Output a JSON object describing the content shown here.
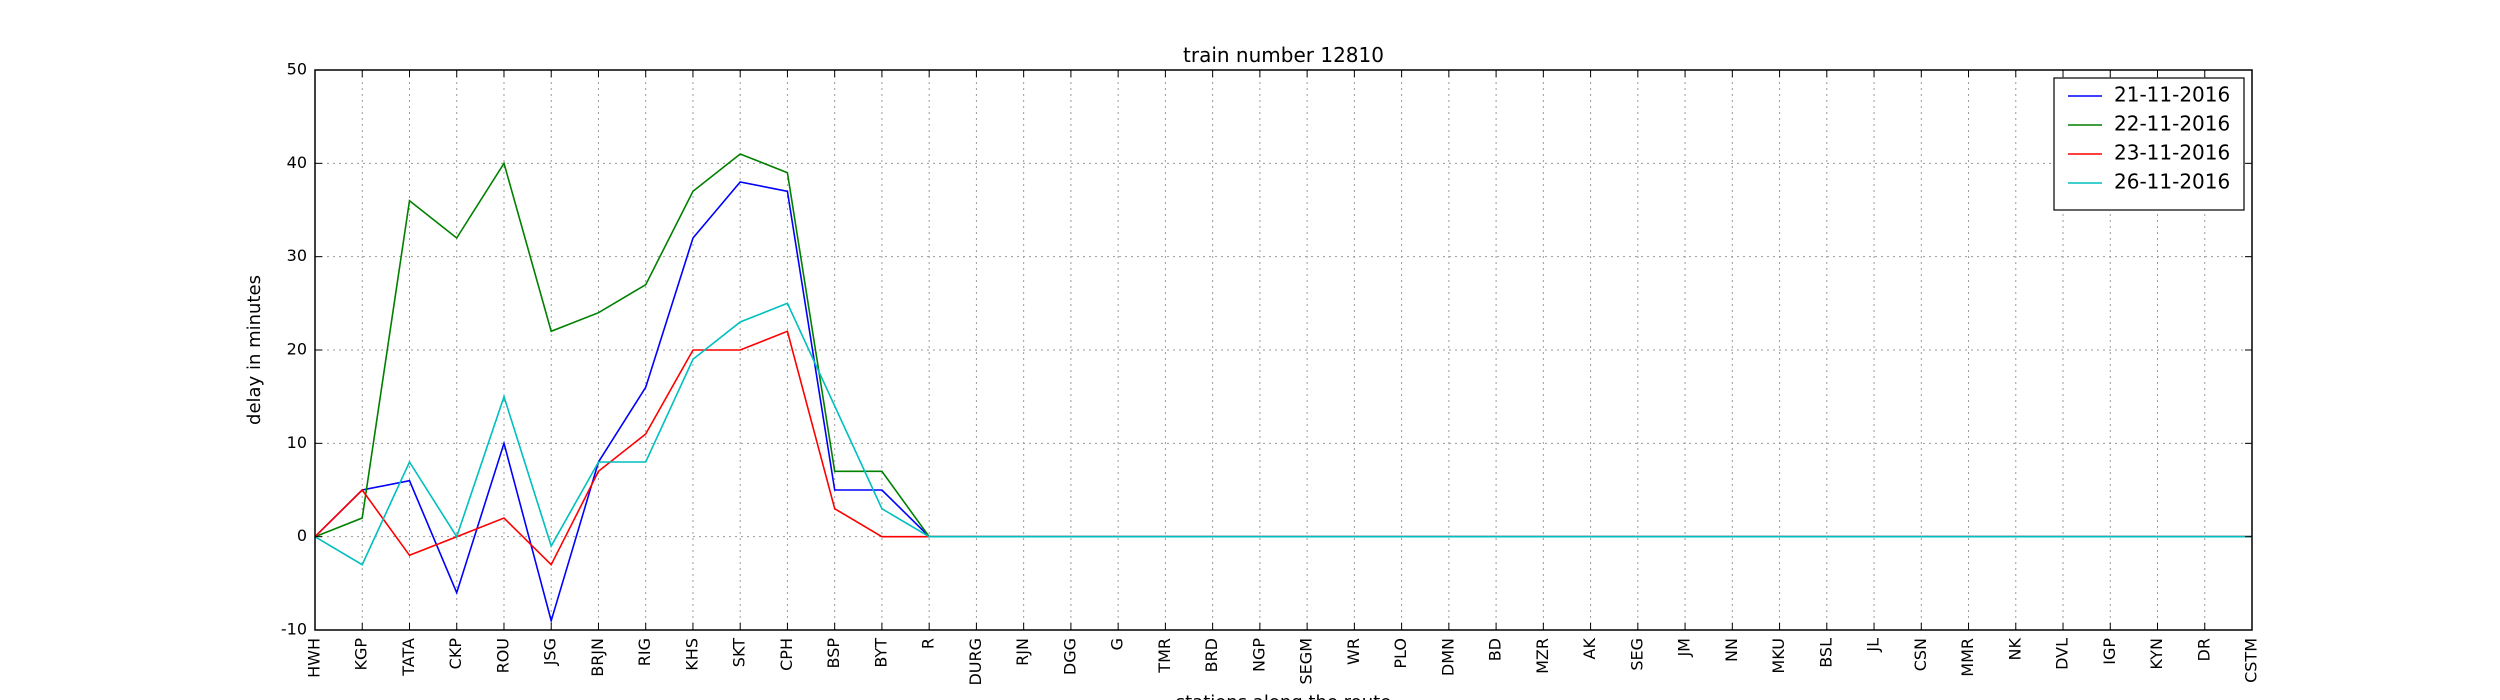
{
  "chart_data": {
    "type": "line",
    "title": "train number 12810",
    "xlabel": "stations along the route",
    "ylabel": "delay in minutes",
    "ylim": [
      -10,
      50
    ],
    "yticks": [
      -10,
      0,
      10,
      20,
      30,
      40,
      50
    ],
    "grid": true,
    "legend_position": "top-right",
    "categories": [
      "HWH",
      "KGP",
      "TATA",
      "CKP",
      "ROU",
      "JSG",
      "BRJN",
      "RIG",
      "KHS",
      "SKT",
      "CPH",
      "BSP",
      "BYT",
      "R",
      "DURG",
      "RJN",
      "DGG",
      "G",
      "TMR",
      "BRD",
      "NGP",
      "SEGM",
      "WR",
      "PLO",
      "DMN",
      "BD",
      "MZR",
      "AK",
      "SEG",
      "JM",
      "NN",
      "MKU",
      "BSL",
      "JL",
      "CSN",
      "MMR",
      "NK",
      "DVL",
      "IGP",
      "KYN",
      "DR",
      "CSTM"
    ],
    "series": [
      {
        "name": "21-11-2016",
        "color": "#0000ff",
        "values": [
          0,
          5,
          6,
          -6,
          10,
          -9,
          8,
          16,
          32,
          38,
          37,
          5,
          5,
          0,
          0,
          0,
          0,
          0,
          0,
          0,
          0,
          0,
          0,
          0,
          0,
          0,
          0,
          0,
          0,
          0,
          0,
          0,
          0,
          0,
          0,
          0,
          0,
          0,
          0,
          0,
          0,
          0
        ]
      },
      {
        "name": "22-11-2016",
        "color": "#008000",
        "values": [
          0,
          2,
          36,
          32,
          40,
          22,
          24,
          27,
          37,
          41,
          39,
          7,
          7,
          0,
          0,
          0,
          0,
          0,
          0,
          0,
          0,
          0,
          0,
          0,
          0,
          0,
          0,
          0,
          0,
          0,
          0,
          0,
          0,
          0,
          0,
          0,
          0,
          0,
          0,
          0,
          0,
          0
        ]
      },
      {
        "name": "23-11-2016",
        "color": "#ff0000",
        "values": [
          0,
          5,
          -2,
          0,
          2,
          -3,
          7,
          11,
          20,
          20,
          22,
          3,
          0,
          0,
          0,
          0,
          0,
          0,
          0,
          0,
          0,
          0,
          0,
          0,
          0,
          0,
          0,
          0,
          0,
          0,
          0,
          0,
          0,
          0,
          0,
          0,
          0,
          0,
          0,
          0,
          0,
          0
        ]
      },
      {
        "name": "26-11-2016",
        "color": "#00bfbf",
        "values": [
          0,
          -3,
          8,
          0,
          15,
          -1,
          8,
          8,
          19,
          23,
          25,
          14,
          3,
          0,
          0,
          0,
          0,
          0,
          0,
          0,
          0,
          0,
          0,
          0,
          0,
          0,
          0,
          0,
          0,
          0,
          0,
          0,
          0,
          0,
          0,
          0,
          0,
          0,
          0,
          0,
          0,
          0
        ]
      }
    ]
  }
}
